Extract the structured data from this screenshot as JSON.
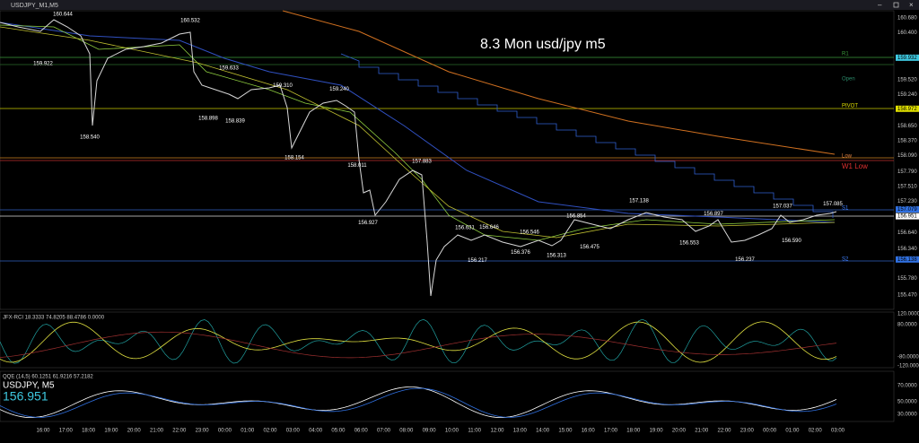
{
  "window": {
    "title": "USDJPY_M1,M5"
  },
  "chart": {
    "heading": "8.3 Mon usd/jpy m5",
    "price_labels": [
      "160.680",
      "160.400",
      "159.932",
      "159.520",
      "159.240",
      "158.972",
      "158.650",
      "158.370",
      "158.090",
      "157.790",
      "157.510",
      "157.230",
      "157.079",
      "156.951",
      "156.640",
      "156.340",
      "156.138",
      "155.780",
      "155.470"
    ],
    "level_labels": [
      "R1",
      "Open",
      "PIVOT",
      "Low",
      "W1 Low",
      "S1",
      "S2"
    ],
    "annotations": [
      "160.644",
      "160.532",
      "159.922",
      "159.633",
      "159.310",
      "159.240",
      "158.898",
      "158.839",
      "158.540",
      "158.154",
      "158.011",
      "157.883",
      "156.927",
      "156.631",
      "156.646",
      "156.546",
      "156.217",
      "156.376",
      "156.313",
      "156.854",
      "156.475",
      "157.138",
      "156.897",
      "156.553",
      "157.037",
      "157.085",
      "156.590",
      "156.237"
    ],
    "time_labels": [
      "16:00",
      "17:00",
      "18:00",
      "19:00",
      "20:00",
      "21:00",
      "22:00",
      "23:00",
      "00:00",
      "01:00",
      "02:00",
      "03:00",
      "04:00",
      "05:00",
      "06:00",
      "07:00",
      "08:00",
      "09:00",
      "10:00",
      "11:00",
      "12:00",
      "13:00",
      "14:00",
      "15:00",
      "16:00",
      "17:00",
      "18:00",
      "19:00",
      "20:00",
      "21:00",
      "22:00",
      "23:00",
      "00:00",
      "01:00",
      "02:00",
      "03:00"
    ]
  },
  "indicator_rci": {
    "label": "JFX-RCI 18.3333 74.8205 88.4786 0.0000",
    "scale": [
      "120.0000",
      "80.0000",
      "-80.0000",
      "-120.0000"
    ]
  },
  "indicator_qqe": {
    "label": "QQE (14,5) 60.1251 61.9216 57.2182",
    "symbol": "USDJPY, M5",
    "price": "156.951",
    "scale": [
      "70.0000",
      "50.0000",
      "30.0000"
    ]
  }
}
